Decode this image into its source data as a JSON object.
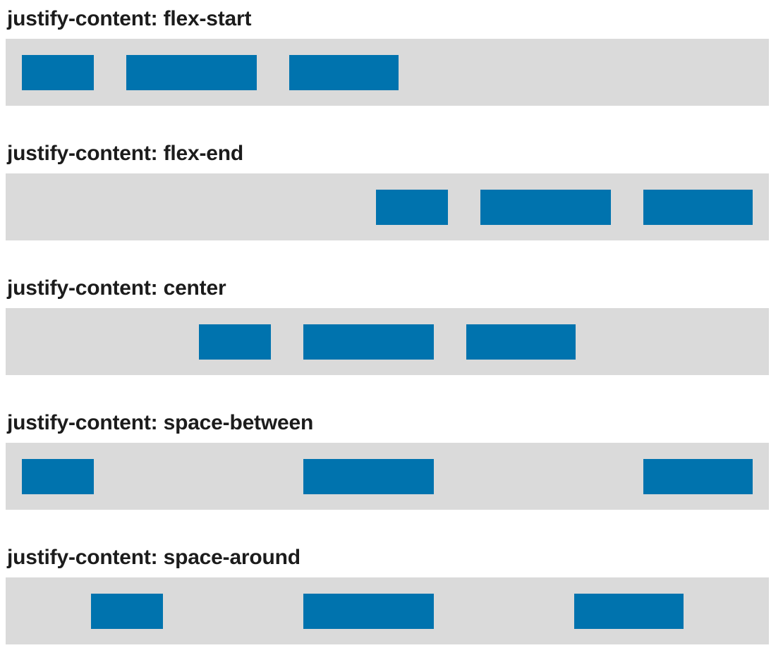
{
  "colors": {
    "track": "#dadada",
    "item": "#0073ae",
    "label": "#1c1c1c"
  },
  "sections": [
    {
      "label": "justify-content: flex-start",
      "justify": "flex-start"
    },
    {
      "label": "justify-content: flex-end",
      "justify": "flex-end"
    },
    {
      "label": "justify-content: center",
      "justify": "center"
    },
    {
      "label": "justify-content: space-between",
      "justify": "space-between"
    },
    {
      "label": "justify-content: space-around",
      "justify": "space-around"
    }
  ]
}
